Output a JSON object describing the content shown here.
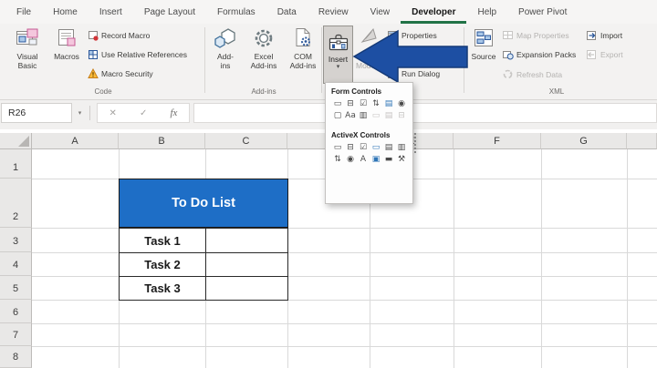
{
  "menu": {
    "tabs": [
      "File",
      "Home",
      "Insert",
      "Page Layout",
      "Formulas",
      "Data",
      "Review",
      "View",
      "Developer",
      "Help",
      "Power Pivot"
    ],
    "active_tab": "Developer",
    "accent_green": "#217346"
  },
  "ribbon": {
    "code": {
      "visual_basic": "Visual Basic",
      "macros": "Macros",
      "record_macro": "Record Macro",
      "use_relative_references": "Use Relative References",
      "macro_security": "Macro Security",
      "label": "Code"
    },
    "addins": {
      "addins": "Add-ins",
      "excel_addins": "Excel Add-ins",
      "com_addins": "COM Add-ins",
      "label": "Add-ins"
    },
    "controls": {
      "insert": "Insert",
      "insert_caret": "▾",
      "design_mode_partial": "Mode",
      "properties": "Properties",
      "run_dialog": "Run Dialog"
    },
    "xml": {
      "source": "Source",
      "map_properties": "Map Properties",
      "expansion_packs": "Expansion Packs",
      "refresh_data": "Refresh Data",
      "import": "Import",
      "export": "Export",
      "label": "XML"
    }
  },
  "formula_bar": {
    "name_box": "R26",
    "name_box_caret": "▾",
    "cancel_glyph": "✕",
    "enter_glyph": "✓",
    "fx_glyph": "fx",
    "value": ""
  },
  "insert_dropdown": {
    "form_title": "Form Controls",
    "activex_title": "ActiveX Controls",
    "form_icons": [
      {
        "name": "button",
        "glyph": "▭",
        "variant": "normal"
      },
      {
        "name": "combo-box",
        "glyph": "⊟",
        "variant": "normal"
      },
      {
        "name": "check-box",
        "glyph": "☑",
        "variant": "normal"
      },
      {
        "name": "spin-button",
        "glyph": "⇅",
        "variant": "normal"
      },
      {
        "name": "list-box",
        "glyph": "▤",
        "variant": "blue"
      },
      {
        "name": "option-button",
        "glyph": "◉",
        "variant": "normal"
      },
      {
        "name": "group-box",
        "glyph": "▢",
        "variant": "normal"
      },
      {
        "name": "label",
        "glyph": "Aa",
        "variant": "normal"
      },
      {
        "name": "scroll-bar",
        "glyph": "▥",
        "variant": "normal"
      },
      {
        "name": "text-field",
        "glyph": "▭",
        "variant": "disabled"
      },
      {
        "name": "combo-list-edit",
        "glyph": "▤",
        "variant": "disabled"
      },
      {
        "name": "combo-dropdown-edit",
        "glyph": "⊟",
        "variant": "disabled"
      }
    ],
    "activex_icons": [
      {
        "name": "command-button",
        "glyph": "▭",
        "variant": "normal"
      },
      {
        "name": "combo-box",
        "glyph": "⊟",
        "variant": "normal"
      },
      {
        "name": "check-box",
        "glyph": "☑",
        "variant": "normal"
      },
      {
        "name": "text-box",
        "glyph": "▭",
        "variant": "blue"
      },
      {
        "name": "list-box",
        "glyph": "▤",
        "variant": "normal"
      },
      {
        "name": "scroll-bar",
        "glyph": "▥",
        "variant": "normal"
      },
      {
        "name": "spin-button",
        "glyph": "⇅",
        "variant": "normal"
      },
      {
        "name": "option-button",
        "glyph": "◉",
        "variant": "normal"
      },
      {
        "name": "label",
        "glyph": "A",
        "variant": "normal"
      },
      {
        "name": "image",
        "glyph": "▣",
        "variant": "blue"
      },
      {
        "name": "toggle-button",
        "glyph": "▬",
        "variant": "normal"
      },
      {
        "name": "more-controls",
        "glyph": "⚒",
        "variant": "normal"
      }
    ]
  },
  "sheet": {
    "columns": [
      "A",
      "B",
      "C",
      "D",
      "E",
      "F",
      "G",
      ""
    ],
    "rows": [
      "1",
      "2",
      "3",
      "4",
      "5",
      "6",
      "7",
      "8"
    ],
    "todo_header": "To Do List",
    "tasks": [
      "Task 1",
      "Task 2",
      "Task 3"
    ],
    "todo_fill": "#1e6ec6",
    "arrow_color": "#1d4fa3"
  }
}
